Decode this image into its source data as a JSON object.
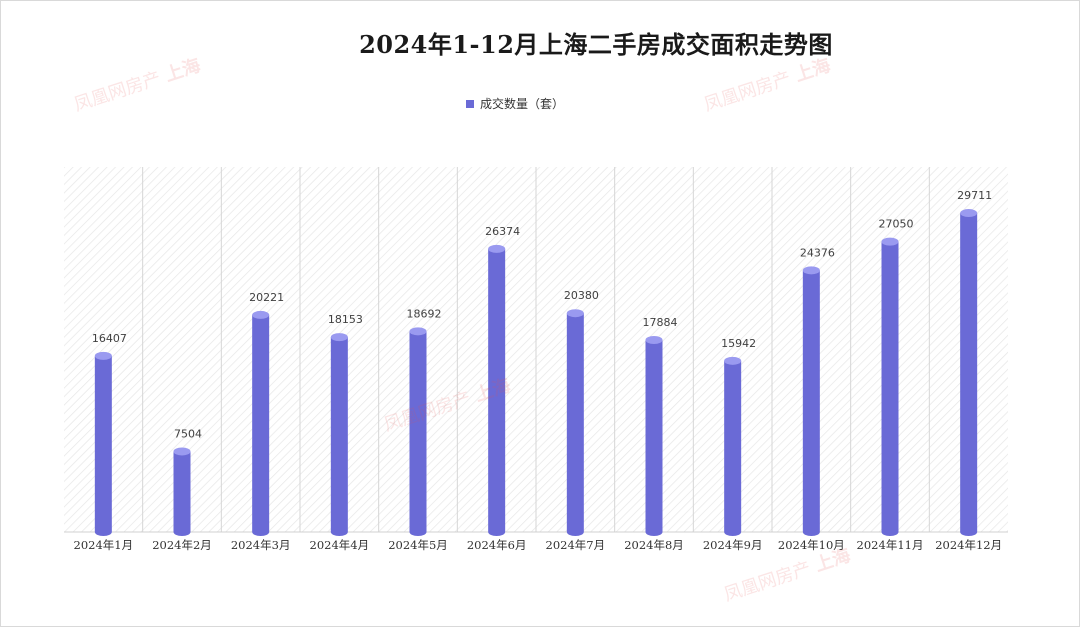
{
  "chart_data": {
    "type": "bar",
    "title": "2024年1-12月上海二手房成交面积走势图",
    "categories": [
      "2024年1月",
      "2024年2月",
      "2024年3月",
      "2024年4月",
      "2024年5月",
      "2024年6月",
      "2024年7月",
      "2024年8月",
      "2024年9月",
      "2024年10月",
      "2024年11月",
      "2024年12月"
    ],
    "series": [
      {
        "name": "成交数量（套）",
        "values": [
          16407,
          7504,
          20221,
          18153,
          18692,
          26374,
          20380,
          17884,
          15942,
          24376,
          27050,
          29711
        ]
      }
    ],
    "ylim": [
      0,
      34000
    ],
    "grid": false,
    "legend_position": "top-center",
    "bar_style": "cylinder",
    "bar_color": "#6a6ad6",
    "xlabel": "",
    "ylabel": ""
  },
  "watermark": {
    "text": "凤凰网房产",
    "badge": "上海"
  }
}
